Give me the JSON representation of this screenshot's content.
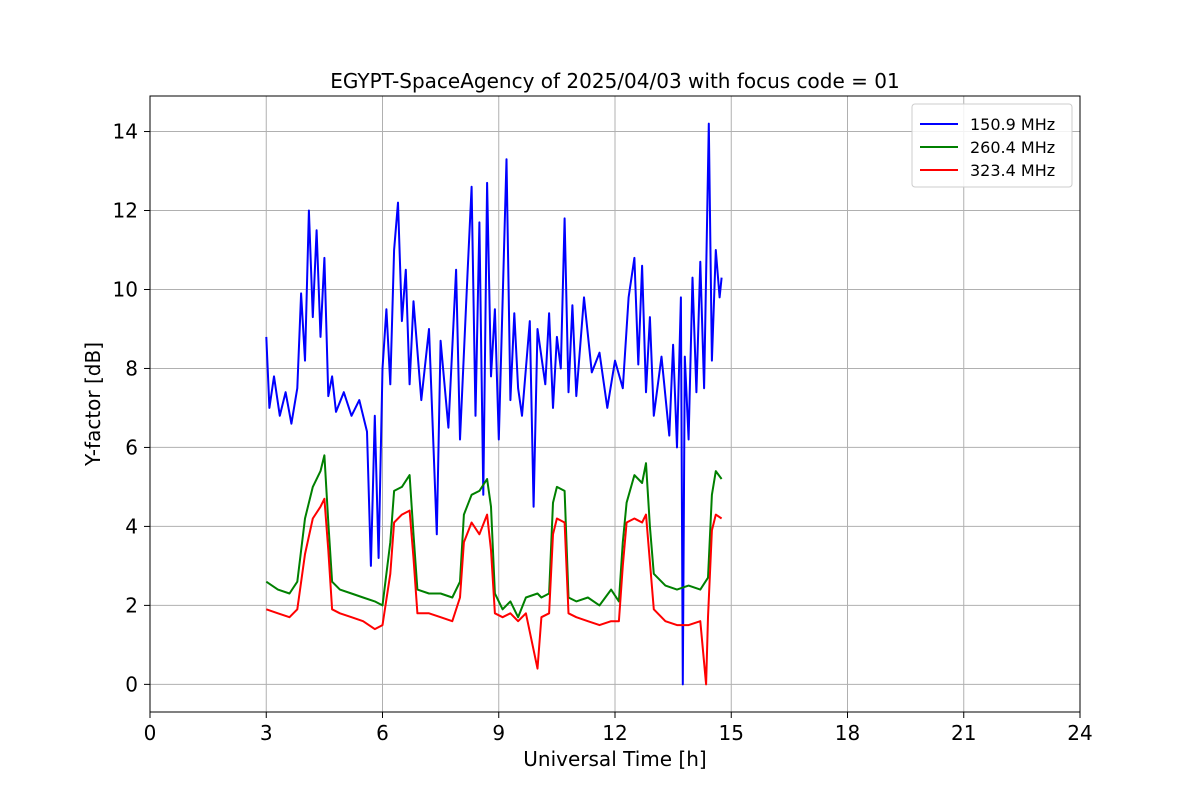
{
  "chart_data": {
    "type": "line",
    "title": "EGYPT-SpaceAgency of 2025/04/03 with focus code = 01",
    "xlabel": "Universal Time [h]",
    "ylabel": "Y-factor [dB]",
    "xlim": [
      0,
      24
    ],
    "ylim": [
      -0.7,
      14.9
    ],
    "xticks": [
      "0",
      "3",
      "6",
      "9",
      "12",
      "15",
      "18",
      "21",
      "24"
    ],
    "yticks": [
      "0",
      "2",
      "4",
      "6",
      "8",
      "10",
      "12",
      "14"
    ],
    "grid": true,
    "legend_position": "top-right",
    "series": [
      {
        "name": "150.9 MHz",
        "color": "#0000ff",
        "points": [
          [
            3.0,
            8.8
          ],
          [
            3.08,
            7.0
          ],
          [
            3.2,
            7.8
          ],
          [
            3.35,
            6.8
          ],
          [
            3.5,
            7.4
          ],
          [
            3.65,
            6.6
          ],
          [
            3.8,
            7.5
          ],
          [
            3.9,
            9.9
          ],
          [
            4.0,
            8.2
          ],
          [
            4.1,
            12.0
          ],
          [
            4.2,
            9.3
          ],
          [
            4.3,
            11.5
          ],
          [
            4.4,
            8.8
          ],
          [
            4.5,
            10.8
          ],
          [
            4.6,
            7.3
          ],
          [
            4.7,
            7.8
          ],
          [
            4.8,
            6.9
          ],
          [
            5.0,
            7.4
          ],
          [
            5.2,
            6.8
          ],
          [
            5.4,
            7.2
          ],
          [
            5.6,
            6.4
          ],
          [
            5.7,
            3.0
          ],
          [
            5.8,
            6.8
          ],
          [
            5.9,
            3.2
          ],
          [
            6.0,
            8.0
          ],
          [
            6.1,
            9.5
          ],
          [
            6.2,
            7.6
          ],
          [
            6.3,
            11.0
          ],
          [
            6.4,
            12.2
          ],
          [
            6.5,
            9.2
          ],
          [
            6.6,
            10.5
          ],
          [
            6.7,
            7.6
          ],
          [
            6.8,
            9.7
          ],
          [
            7.0,
            7.2
          ],
          [
            7.2,
            9.0
          ],
          [
            7.4,
            3.8
          ],
          [
            7.5,
            8.7
          ],
          [
            7.7,
            6.5
          ],
          [
            7.9,
            10.5
          ],
          [
            8.0,
            6.2
          ],
          [
            8.2,
            10.5
          ],
          [
            8.3,
            12.6
          ],
          [
            8.4,
            6.8
          ],
          [
            8.5,
            11.7
          ],
          [
            8.6,
            4.8
          ],
          [
            8.7,
            12.7
          ],
          [
            8.8,
            7.8
          ],
          [
            8.9,
            9.5
          ],
          [
            9.0,
            6.2
          ],
          [
            9.1,
            9.7
          ],
          [
            9.2,
            13.3
          ],
          [
            9.3,
            7.2
          ],
          [
            9.4,
            9.4
          ],
          [
            9.5,
            7.5
          ],
          [
            9.6,
            6.8
          ],
          [
            9.8,
            9.2
          ],
          [
            9.9,
            4.5
          ],
          [
            10.0,
            9.0
          ],
          [
            10.2,
            7.6
          ],
          [
            10.3,
            9.4
          ],
          [
            10.4,
            7.0
          ],
          [
            10.5,
            8.8
          ],
          [
            10.6,
            8.0
          ],
          [
            10.7,
            11.8
          ],
          [
            10.8,
            7.4
          ],
          [
            10.9,
            9.6
          ],
          [
            11.0,
            7.3
          ],
          [
            11.2,
            9.8
          ],
          [
            11.4,
            7.9
          ],
          [
            11.6,
            8.4
          ],
          [
            11.8,
            7.0
          ],
          [
            12.0,
            8.2
          ],
          [
            12.2,
            7.5
          ],
          [
            12.35,
            9.8
          ],
          [
            12.5,
            10.8
          ],
          [
            12.6,
            8.1
          ],
          [
            12.7,
            10.6
          ],
          [
            12.8,
            7.4
          ],
          [
            12.9,
            9.3
          ],
          [
            13.0,
            6.8
          ],
          [
            13.2,
            8.3
          ],
          [
            13.4,
            6.3
          ],
          [
            13.5,
            8.6
          ],
          [
            13.6,
            6.0
          ],
          [
            13.7,
            9.8
          ],
          [
            13.75,
            0.0
          ],
          [
            13.8,
            8.3
          ],
          [
            13.9,
            6.2
          ],
          [
            14.0,
            10.3
          ],
          [
            14.1,
            7.4
          ],
          [
            14.2,
            10.7
          ],
          [
            14.3,
            7.5
          ],
          [
            14.42,
            14.2
          ],
          [
            14.5,
            8.2
          ],
          [
            14.6,
            11.0
          ],
          [
            14.7,
            9.8
          ],
          [
            14.75,
            10.3
          ]
        ]
      },
      {
        "name": "260.4 MHz",
        "color": "#008000",
        "points": [
          [
            3.0,
            2.6
          ],
          [
            3.3,
            2.4
          ],
          [
            3.6,
            2.3
          ],
          [
            3.8,
            2.6
          ],
          [
            4.0,
            4.2
          ],
          [
            4.2,
            5.0
          ],
          [
            4.4,
            5.4
          ],
          [
            4.5,
            5.8
          ],
          [
            4.6,
            4.1
          ],
          [
            4.7,
            2.6
          ],
          [
            4.9,
            2.4
          ],
          [
            5.2,
            2.3
          ],
          [
            5.5,
            2.2
          ],
          [
            5.8,
            2.1
          ],
          [
            6.0,
            2.0
          ],
          [
            6.2,
            3.6
          ],
          [
            6.3,
            4.9
          ],
          [
            6.5,
            5.0
          ],
          [
            6.7,
            5.3
          ],
          [
            6.8,
            3.8
          ],
          [
            6.9,
            2.4
          ],
          [
            7.2,
            2.3
          ],
          [
            7.5,
            2.3
          ],
          [
            7.8,
            2.2
          ],
          [
            8.0,
            2.6
          ],
          [
            8.1,
            4.3
          ],
          [
            8.3,
            4.8
          ],
          [
            8.5,
            4.9
          ],
          [
            8.7,
            5.2
          ],
          [
            8.8,
            4.5
          ],
          [
            8.9,
            2.3
          ],
          [
            9.1,
            1.9
          ],
          [
            9.3,
            2.1
          ],
          [
            9.5,
            1.7
          ],
          [
            9.7,
            2.2
          ],
          [
            10.0,
            2.3
          ],
          [
            10.1,
            2.2
          ],
          [
            10.3,
            2.3
          ],
          [
            10.4,
            4.6
          ],
          [
            10.5,
            5.0
          ],
          [
            10.7,
            4.9
          ],
          [
            10.8,
            2.2
          ],
          [
            11.0,
            2.1
          ],
          [
            11.3,
            2.2
          ],
          [
            11.6,
            2.0
          ],
          [
            11.9,
            2.4
          ],
          [
            12.1,
            2.1
          ],
          [
            12.2,
            3.6
          ],
          [
            12.3,
            4.6
          ],
          [
            12.5,
            5.3
          ],
          [
            12.7,
            5.1
          ],
          [
            12.8,
            5.6
          ],
          [
            12.9,
            4.0
          ],
          [
            13.0,
            2.8
          ],
          [
            13.3,
            2.5
          ],
          [
            13.6,
            2.4
          ],
          [
            13.9,
            2.5
          ],
          [
            14.2,
            2.4
          ],
          [
            14.4,
            2.7
          ],
          [
            14.5,
            4.8
          ],
          [
            14.6,
            5.4
          ],
          [
            14.75,
            5.2
          ]
        ]
      },
      {
        "name": "323.4 MHz",
        "color": "#ff0000",
        "points": [
          [
            3.0,
            1.9
          ],
          [
            3.3,
            1.8
          ],
          [
            3.6,
            1.7
          ],
          [
            3.8,
            1.9
          ],
          [
            4.0,
            3.3
          ],
          [
            4.2,
            4.2
          ],
          [
            4.4,
            4.5
          ],
          [
            4.5,
            4.7
          ],
          [
            4.6,
            3.4
          ],
          [
            4.7,
            1.9
          ],
          [
            4.9,
            1.8
          ],
          [
            5.2,
            1.7
          ],
          [
            5.5,
            1.6
          ],
          [
            5.8,
            1.4
          ],
          [
            6.0,
            1.5
          ],
          [
            6.2,
            2.8
          ],
          [
            6.3,
            4.1
          ],
          [
            6.5,
            4.3
          ],
          [
            6.7,
            4.4
          ],
          [
            6.8,
            3.2
          ],
          [
            6.9,
            1.8
          ],
          [
            7.2,
            1.8
          ],
          [
            7.5,
            1.7
          ],
          [
            7.8,
            1.6
          ],
          [
            8.0,
            2.2
          ],
          [
            8.1,
            3.6
          ],
          [
            8.3,
            4.1
          ],
          [
            8.5,
            3.8
          ],
          [
            8.7,
            4.3
          ],
          [
            8.8,
            3.4
          ],
          [
            8.9,
            1.8
          ],
          [
            9.1,
            1.7
          ],
          [
            9.3,
            1.8
          ],
          [
            9.5,
            1.6
          ],
          [
            9.7,
            1.8
          ],
          [
            10.0,
            0.4
          ],
          [
            10.1,
            1.7
          ],
          [
            10.3,
            1.8
          ],
          [
            10.4,
            3.8
          ],
          [
            10.5,
            4.2
          ],
          [
            10.7,
            4.1
          ],
          [
            10.8,
            1.8
          ],
          [
            11.0,
            1.7
          ],
          [
            11.3,
            1.6
          ],
          [
            11.6,
            1.5
          ],
          [
            11.9,
            1.6
          ],
          [
            12.1,
            1.6
          ],
          [
            12.2,
            3.0
          ],
          [
            12.3,
            4.1
          ],
          [
            12.5,
            4.2
          ],
          [
            12.7,
            4.1
          ],
          [
            12.8,
            4.3
          ],
          [
            12.9,
            3.1
          ],
          [
            13.0,
            1.9
          ],
          [
            13.3,
            1.6
          ],
          [
            13.6,
            1.5
          ],
          [
            13.9,
            1.5
          ],
          [
            14.2,
            1.6
          ],
          [
            14.35,
            0.0
          ],
          [
            14.4,
            1.7
          ],
          [
            14.5,
            3.9
          ],
          [
            14.6,
            4.3
          ],
          [
            14.75,
            4.2
          ]
        ]
      }
    ]
  }
}
